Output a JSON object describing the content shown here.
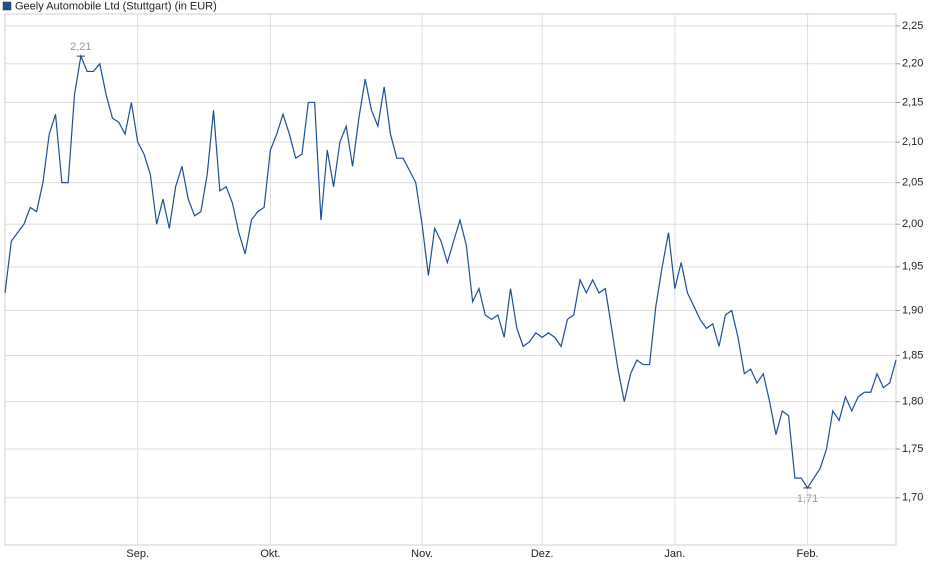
{
  "chart_data": {
    "type": "line",
    "categories": [
      null,
      null,
      null,
      null,
      null,
      null,
      null,
      null,
      null,
      null,
      null,
      null,
      null,
      null,
      null,
      null,
      null,
      null,
      null,
      null,
      null,
      "Sep.",
      null,
      null,
      null,
      null,
      null,
      null,
      null,
      null,
      null,
      null,
      null,
      null,
      null,
      null,
      null,
      null,
      null,
      null,
      null,
      null,
      "Okt.",
      null,
      null,
      null,
      null,
      null,
      null,
      null,
      null,
      null,
      null,
      null,
      null,
      null,
      null,
      null,
      null,
      null,
      null,
      null,
      null,
      null,
      null,
      null,
      "Nov.",
      null,
      null,
      null,
      null,
      null,
      null,
      null,
      null,
      null,
      null,
      null,
      null,
      null,
      null,
      null,
      null,
      null,
      null,
      "Dez.",
      null,
      null,
      null,
      null,
      null,
      null,
      null,
      null,
      null,
      null,
      null,
      null,
      null,
      null,
      null,
      null,
      null,
      null,
      null,
      null,
      "Jan.",
      null,
      null,
      null,
      null,
      null,
      null,
      null,
      null,
      null,
      null,
      null,
      null,
      null,
      null,
      null,
      null,
      null,
      null,
      null,
      null,
      "Feb.",
      null,
      null,
      null,
      null,
      null,
      null,
      null,
      null,
      null,
      null,
      null,
      null,
      null,
      null
    ],
    "series": [
      {
        "name": "Geely Automobile Ltd (Stuttgart) (in EUR)",
        "color": "#1d4f91",
        "values": [
          1.92,
          1.98,
          1.99,
          2.0,
          2.02,
          2.015,
          2.05,
          2.11,
          2.135,
          2.05,
          2.05,
          2.16,
          2.21,
          2.19,
          2.19,
          2.2,
          2.16,
          2.13,
          2.125,
          2.11,
          2.15,
          2.1,
          2.085,
          2.06,
          2.0,
          2.03,
          1.995,
          2.045,
          2.07,
          2.03,
          2.01,
          2.015,
          2.06,
          2.14,
          2.04,
          2.045,
          2.025,
          1.99,
          1.965,
          2.005,
          2.015,
          2.02,
          2.09,
          2.11,
          2.135,
          2.11,
          2.08,
          2.085,
          2.15,
          2.15,
          2.005,
          2.09,
          2.045,
          2.1,
          2.12,
          2.07,
          2.13,
          2.18,
          2.14,
          2.12,
          2.17,
          2.11,
          2.08,
          2.08,
          2.065,
          2.05,
          2.0,
          1.94,
          1.995,
          1.98,
          1.955,
          1.98,
          2.005,
          1.975,
          1.91,
          1.925,
          1.895,
          1.89,
          1.895,
          1.87,
          1.925,
          1.88,
          1.86,
          1.865,
          1.875,
          1.87,
          1.875,
          1.87,
          1.86,
          1.89,
          1.895,
          1.935,
          1.92,
          1.935,
          1.92,
          1.925,
          1.88,
          1.835,
          1.8,
          1.83,
          1.845,
          1.84,
          1.84,
          1.905,
          1.95,
          1.99,
          1.925,
          1.955,
          1.92,
          1.905,
          1.89,
          1.88,
          1.885,
          1.86,
          1.895,
          1.9,
          1.87,
          1.83,
          1.835,
          1.82,
          1.83,
          1.8,
          1.765,
          1.79,
          1.785,
          1.72,
          1.72,
          1.71,
          1.72,
          1.73,
          1.75,
          1.79,
          1.78,
          1.805,
          1.79,
          1.805,
          1.81,
          1.81,
          1.83,
          1.815,
          1.82,
          1.845
        ],
        "value_labels": [
          null,
          null,
          null,
          null,
          null,
          null,
          null,
          null,
          null,
          null,
          null,
          null,
          "2,21",
          null,
          null,
          null,
          null,
          null,
          null,
          null,
          null,
          null,
          null,
          null,
          null,
          null,
          null,
          null,
          null,
          null,
          null,
          null,
          null,
          null,
          null,
          null,
          null,
          null,
          null,
          null,
          null,
          null,
          null,
          null,
          null,
          null,
          null,
          null,
          null,
          null,
          null,
          null,
          null,
          null,
          null,
          null,
          null,
          null,
          null,
          null,
          null,
          null,
          null,
          null,
          null,
          null,
          null,
          null,
          null,
          null,
          null,
          null,
          null,
          null,
          null,
          null,
          null,
          null,
          null,
          null,
          null,
          null,
          null,
          null,
          null,
          null,
          null,
          null,
          null,
          null,
          null,
          null,
          null,
          null,
          null,
          null,
          null,
          null,
          null,
          null,
          null,
          null,
          null,
          null,
          null,
          null,
          null,
          null,
          null,
          null,
          null,
          null,
          null,
          null,
          null,
          null,
          null,
          null,
          null,
          null,
          null,
          null,
          null,
          null,
          null,
          null,
          null,
          "1,71",
          null,
          null,
          null,
          null,
          null,
          null,
          null,
          null,
          null,
          null,
          null,
          null,
          null,
          null
        ]
      }
    ],
    "ylim": [
      1.653,
      2.266
    ],
    "log_scale": true,
    "yticks": [
      {
        "value": 1.7,
        "label": "1,70"
      },
      {
        "value": 1.75,
        "label": "1,75"
      },
      {
        "value": 1.8,
        "label": "1,80"
      },
      {
        "value": 1.85,
        "label": "1,85"
      },
      {
        "value": 1.9,
        "label": "1,90"
      },
      {
        "value": 1.95,
        "label": "1,95"
      },
      {
        "value": 2.0,
        "label": "2,00"
      },
      {
        "value": 2.05,
        "label": "2,05"
      },
      {
        "value": 2.1,
        "label": "2,10"
      },
      {
        "value": 2.15,
        "label": "2,15"
      },
      {
        "value": 2.2,
        "label": "2,20"
      },
      {
        "value": 2.25,
        "label": "2,25"
      }
    ],
    "grid": true
  }
}
